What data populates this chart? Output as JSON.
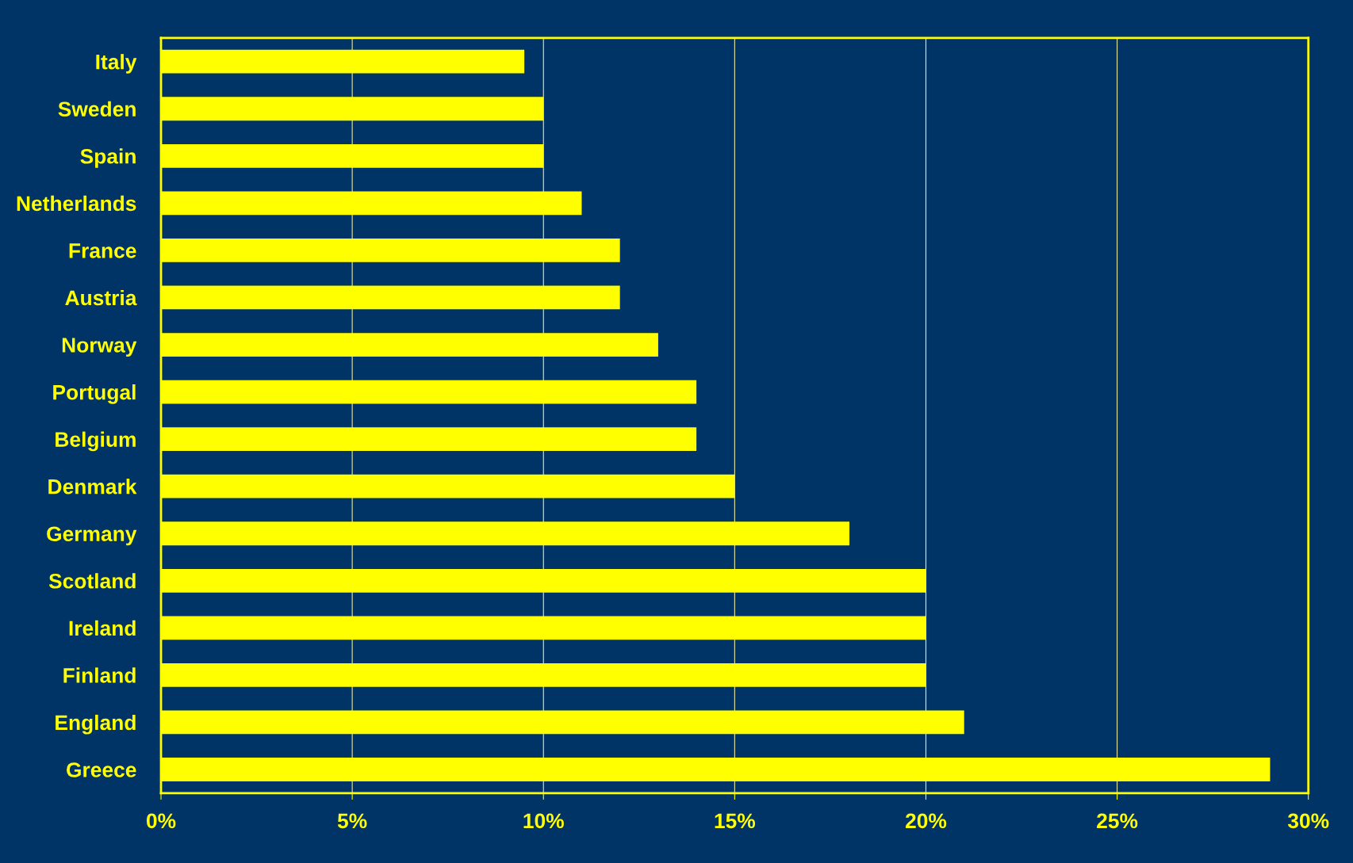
{
  "chart_data": {
    "type": "bar",
    "orientation": "horizontal",
    "categories": [
      "Italy",
      "Sweden",
      "Spain",
      "Netherlands",
      "France",
      "Austria",
      "Norway",
      "Portugal",
      "Belgium",
      "Denmark",
      "Germany",
      "Scotland",
      "Ireland",
      "Finland",
      "England",
      "Greece"
    ],
    "values": [
      9.5,
      10,
      10,
      11,
      12,
      12,
      13,
      14,
      14,
      15,
      18,
      20,
      20,
      20,
      21,
      29
    ],
    "color": "#ffff00",
    "xlim": [
      0,
      30
    ],
    "xticks": [
      {
        "value": 0,
        "label": "0%"
      },
      {
        "value": 5,
        "label": "5%"
      },
      {
        "value": 10,
        "label": "10%"
      },
      {
        "value": 15,
        "label": "15%"
      },
      {
        "value": 20,
        "label": "20%"
      },
      {
        "value": 25,
        "label": "25%"
      },
      {
        "value": 30,
        "label": "30%"
      }
    ],
    "grid": "x",
    "legend": false
  }
}
